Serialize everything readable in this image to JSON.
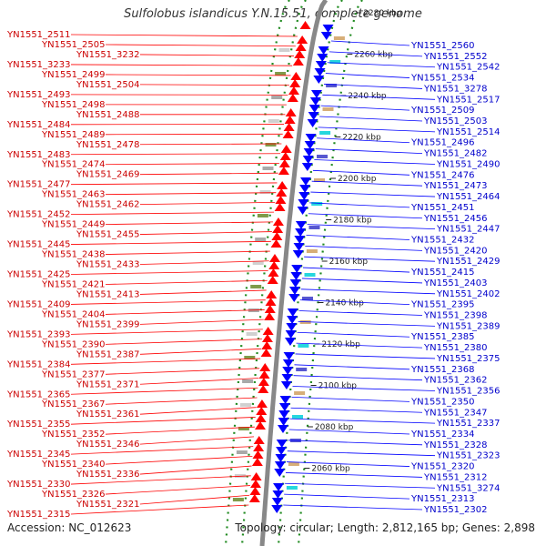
{
  "title": "Sulfolobus islandicus Y.N.15.51, complete genome",
  "footer": {
    "accession": "Accession: NC_012623",
    "summary": "Topology: circular; Length: 2,812,165 bp; Genes: 2,898"
  },
  "colors": {
    "minus_strand": "#ff0000",
    "plus_strand": "#0000ff",
    "minus_label": "#cc0000",
    "plus_label": "#0000cc",
    "backbone": "#888888",
    "ring_dots": "#1f8a1f"
  },
  "scale": {
    "unit": "kbp",
    "ticks": [
      "2280 kbp",
      "2260 kbp",
      "2240 kbp",
      "2220 kbp",
      "2200 kbp",
      "2180 kbp",
      "2160 kbp",
      "2140 kbp",
      "2120 kbp",
      "2100 kbp",
      "2080 kbp",
      "2060 kbp"
    ]
  },
  "left_labels": [
    "YN1551_2511",
    "YN1551_2505",
    "YN1551_3232",
    "YN1551_3233",
    "YN1551_2499",
    "YN1551_2504",
    "YN1551_2493",
    "YN1551_2498",
    "YN1551_2488",
    "YN1551_2484",
    "YN1551_2489",
    "YN1551_2478",
    "YN1551_2483",
    "YN1551_2474",
    "YN1551_2469",
    "YN1551_2477",
    "YN1551_2463",
    "YN1551_2462",
    "YN1551_2452",
    "YN1551_2449",
    "YN1551_2455",
    "YN1551_2445",
    "YN1551_2438",
    "YN1551_2433",
    "YN1551_2425",
    "YN1551_2421",
    "YN1551_2413",
    "YN1551_2409",
    "YN1551_2404",
    "YN1551_2399",
    "YN1551_2393",
    "YN1551_2390",
    "YN1551_2387",
    "YN1551_2384",
    "YN1551_2377",
    "YN1551_2371",
    "YN1551_2365",
    "YN1551_2367",
    "YN1551_2361",
    "YN1551_2355",
    "YN1551_2352",
    "YN1551_2346",
    "YN1551_2345",
    "YN1551_2340",
    "YN1551_2336",
    "YN1551_2330",
    "YN1551_2326",
    "YN1551_2321",
    "YN1551_2315"
  ],
  "right_labels": [
    "YN1551_2560",
    "YN1551_2552",
    "YN1551_2542",
    "YN1551_2534",
    "YN1551_3278",
    "YN1551_2517",
    "YN1551_2509",
    "YN1551_2503",
    "YN1551_2514",
    "YN1551_2496",
    "YN1551_2482",
    "YN1551_2490",
    "YN1551_2476",
    "YN1551_2473",
    "YN1551_2464",
    "YN1551_2451",
    "YN1551_2456",
    "YN1551_2447",
    "YN1551_2432",
    "YN1551_2420",
    "YN1551_2429",
    "YN1551_2415",
    "YN1551_2403",
    "YN1551_2402",
    "YN1551_2395",
    "YN1551_2398",
    "YN1551_2389",
    "YN1551_2385",
    "YN1551_2380",
    "YN1551_2375",
    "YN1551_2368",
    "YN1551_2362",
    "YN1551_2356",
    "YN1551_2350",
    "YN1551_2347",
    "YN1551_2337",
    "YN1551_2334",
    "YN1551_2328",
    "YN1551_2323",
    "YN1551_2320",
    "YN1551_2312",
    "YN1551_3274",
    "YN1551_2313",
    "YN1551_2302"
  ]
}
